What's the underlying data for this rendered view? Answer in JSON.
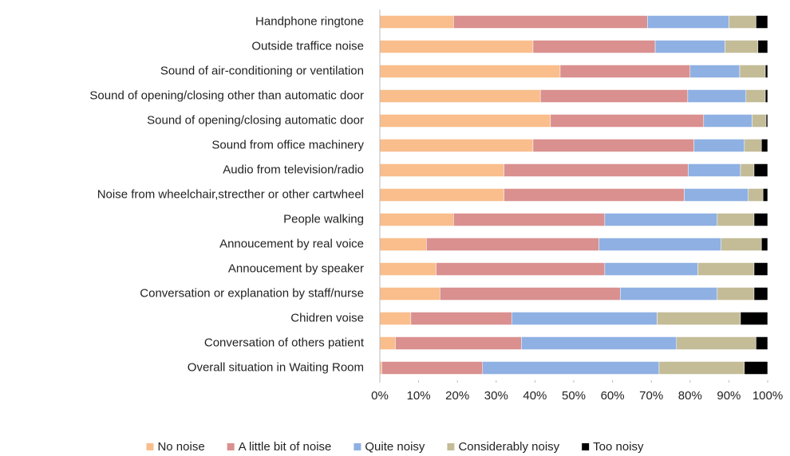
{
  "chart_data": {
    "type": "stacked_barh",
    "categories": [
      "Handphone ringtone",
      "Outside traffice noise",
      "Sound of air-conditioning or ventilation",
      "Sound of opening/closing other than automatic door",
      "Sound of opening/closing automatic door",
      "Sound from office machinery",
      "Audio from television/radio",
      "Noise from wheelchair,strecther or other cartwheel",
      "People walking",
      "Annoucement by real voice",
      "Annoucement by speaker",
      "Conversation or explanation by staff/nurse",
      "Chidren voise",
      "Conversation of others patient",
      "Overall situation in Waiting Room"
    ],
    "series": [
      {
        "name": "No noise",
        "color": "#f9be8c",
        "values": [
          19,
          39.5,
          46.5,
          41.4,
          44,
          39.5,
          32,
          32,
          19,
          12,
          14.5,
          15.5,
          8,
          4,
          0.5
        ]
      },
      {
        "name": "A little bit of noise",
        "color": "#d9908f",
        "values": [
          50,
          31.5,
          33.5,
          38,
          39.5,
          41.5,
          47.5,
          46.5,
          39,
          44.5,
          43.5,
          46.5,
          26,
          32.5,
          26
        ]
      },
      {
        "name": "Quite noisy",
        "color": "#8fb0e3",
        "values": [
          21,
          18,
          12.8,
          15,
          12.5,
          13,
          13.5,
          16.5,
          29,
          31.5,
          24,
          25,
          37.5,
          40,
          45.5
        ]
      },
      {
        "name": "Considerably noisy",
        "color": "#c3bc97",
        "values": [
          7,
          8.5,
          6.6,
          5,
          3.6,
          4.4,
          3.5,
          3.8,
          9.5,
          10.4,
          14.5,
          9.5,
          21.5,
          20.5,
          22
        ]
      },
      {
        "name": "Too noisy",
        "color": "#000000",
        "values": [
          3,
          2.5,
          0.6,
          0.6,
          0.4,
          1.6,
          3.5,
          1.2,
          3.5,
          1.6,
          3.5,
          3.5,
          7,
          3,
          6
        ]
      }
    ],
    "xlim": [
      0,
      100
    ],
    "xticks": [
      {
        "value": 0,
        "label": "0%"
      },
      {
        "value": 10,
        "label": "10%"
      },
      {
        "value": 20,
        "label": "20%"
      },
      {
        "value": 30,
        "label": "30%"
      },
      {
        "value": 40,
        "label": "40%"
      },
      {
        "value": 50,
        "label": "50%"
      },
      {
        "value": 60,
        "label": "60%"
      },
      {
        "value": 70,
        "label": "70%"
      },
      {
        "value": 80,
        "label": "80%"
      },
      {
        "value": 90,
        "label": "90%"
      },
      {
        "value": 100,
        "label": "100%"
      }
    ],
    "grid": false,
    "legend": "bottom"
  }
}
